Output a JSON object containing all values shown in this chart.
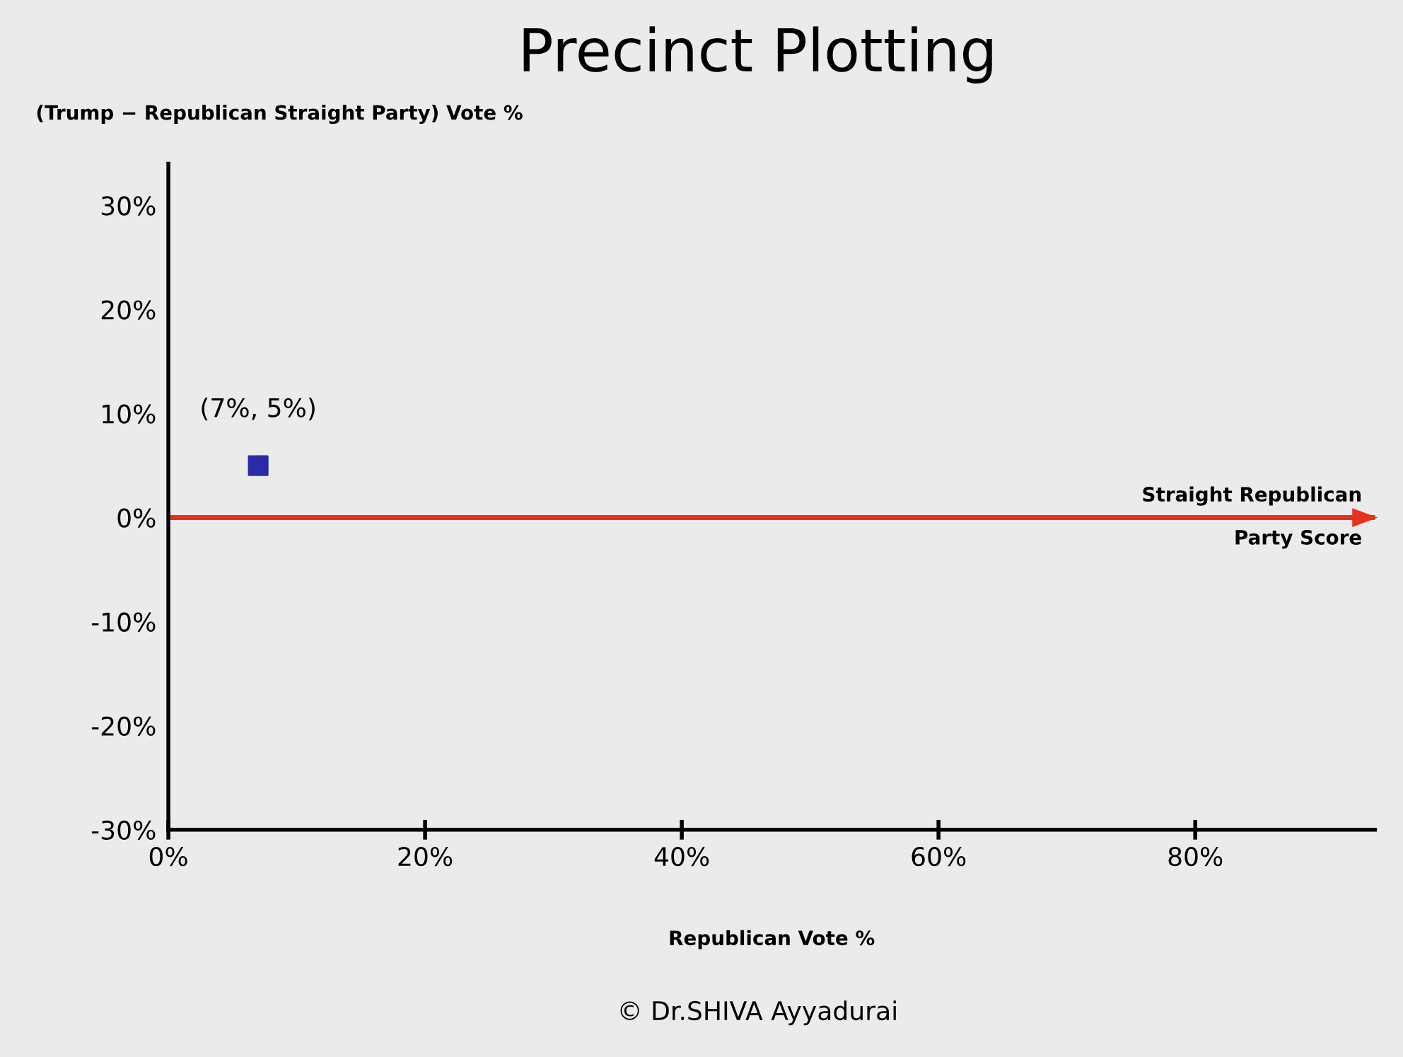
{
  "chart_data": {
    "type": "scatter",
    "title": "Precinct Plotting",
    "xlabel": "Republican Vote %",
    "ylabel": "(Trump − Republican Straight Party) Vote %",
    "x": [
      7
    ],
    "series": [
      {
        "color": "#2b2ba8",
        "values": [
          5
        ]
      }
    ],
    "marker": "square",
    "xlim": [
      0,
      94
    ],
    "xticks": [
      {
        "value": 0,
        "label": "0%"
      },
      {
        "value": 20,
        "label": "20%"
      },
      {
        "value": 40,
        "label": "40%"
      },
      {
        "value": 60,
        "label": "60%"
      },
      {
        "value": 80,
        "label": "80%"
      }
    ],
    "ylim": [
      -30,
      34
    ],
    "yticks": [
      {
        "value": -30,
        "label": "-30%"
      },
      {
        "value": -20,
        "label": "-20%"
      },
      {
        "value": -10,
        "label": "-10%"
      },
      {
        "value": 0,
        "label": "0%"
      },
      {
        "value": 10,
        "label": "10%"
      },
      {
        "value": 20,
        "label": "20%"
      },
      {
        "value": 30,
        "label": "30%"
      }
    ],
    "ref_lines": [
      {
        "axis": "y",
        "value": 0,
        "label": "Straight Republican\nParty Score",
        "color": "#e8321e"
      }
    ],
    "annotations": [
      {
        "text": "(7%, 5%)",
        "x": 7,
        "y": 5
      },
      "© Dr.SHIVA Ayyadurai"
    ],
    "grid": false,
    "legend": false
  }
}
